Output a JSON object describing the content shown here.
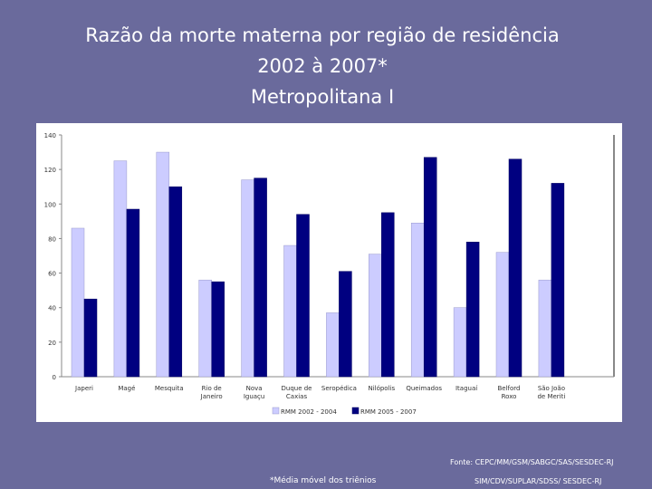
{
  "title": {
    "line1": "Razão da morte materna por região de residência",
    "line2": "2002 à 2007*",
    "line3": "Metropolitana I"
  },
  "footer": {
    "source_line1": "Fonte: CEPC/MM/GSM/SABGC/SAS/SESDEC-RJ",
    "source_line2": "SIM/CDV/SUPLAR/SDSS/ SESDEC-RJ",
    "footnote": "*Média móvel dos triênios"
  },
  "chart_data": {
    "type": "bar",
    "title": "",
    "xlabel": "",
    "ylabel": "",
    "ylim": [
      0,
      140
    ],
    "yticks": [
      0,
      20,
      40,
      60,
      80,
      100,
      120,
      140
    ],
    "grid": false,
    "legend_position": "bottom",
    "categories": [
      [
        "Japeri"
      ],
      [
        "Magé"
      ],
      [
        "Mesquita"
      ],
      [
        "Rio de",
        "Janeiro"
      ],
      [
        "Nova",
        "Iguaçu"
      ],
      [
        "Duque de",
        "Caxias"
      ],
      [
        "Seropédica"
      ],
      [
        "Nilópolis"
      ],
      [
        "Queimados"
      ],
      [
        "Itaguaí"
      ],
      [
        "Belford",
        "Roxo"
      ],
      [
        "São João",
        "de Meriti"
      ]
    ],
    "series": [
      {
        "name": "RMM 2002 - 2004",
        "color": "#ccccff",
        "values": [
          86,
          125,
          130,
          56,
          114,
          76,
          37,
          71,
          89,
          40,
          72,
          56
        ]
      },
      {
        "name": "RMM 2005 - 2007",
        "color": "#000080",
        "values": [
          45,
          97,
          110,
          55,
          115,
          94,
          61,
          95,
          127,
          78,
          126,
          112
        ]
      }
    ]
  }
}
